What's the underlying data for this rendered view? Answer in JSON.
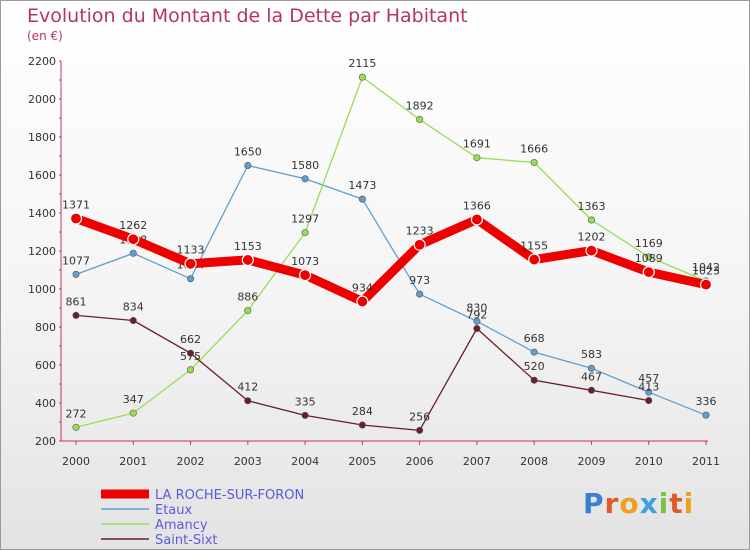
{
  "header": {
    "title": "Evolution du Montant de la Dette par Habitant",
    "subtitle": "(en €)"
  },
  "logo": {
    "text": "Proxiti"
  },
  "chart_data": {
    "type": "line",
    "title": "Evolution du Montant de la Dette par Habitant",
    "subtitle": "(en €)",
    "xlabel": "",
    "ylabel": "",
    "x": [
      "2000",
      "2001",
      "2002",
      "2003",
      "2004",
      "2005",
      "2006",
      "2007",
      "2008",
      "2009",
      "2010",
      "2011"
    ],
    "ylim": [
      200,
      2200
    ],
    "yticks": [
      200,
      400,
      600,
      800,
      1000,
      1200,
      1400,
      1600,
      1800,
      2000,
      2200
    ],
    "grid": false,
    "legend": "bottom-left",
    "series": [
      {
        "name": "LA ROCHE-SUR-FORON",
        "color": "#ee0000",
        "bold": true,
        "values": [
          1371,
          1262,
          1133,
          1153,
          1073,
          934,
          1233,
          1366,
          1155,
          1202,
          1089,
          1023
        ]
      },
      {
        "name": "Etaux",
        "color": "#5f9fd0",
        "bold": false,
        "values": [
          1077,
          1188,
          1054,
          1650,
          1580,
          1473,
          973,
          830,
          668,
          583,
          457,
          336
        ]
      },
      {
        "name": "Amancy",
        "color": "#99dd55",
        "bold": false,
        "values": [
          272,
          347,
          575,
          886,
          1297,
          2115,
          1892,
          1691,
          1666,
          1363,
          1169,
          1042
        ]
      },
      {
        "name": "Saint-Sixt",
        "color": "#6a1f28",
        "bold": false,
        "values": [
          861,
          834,
          662,
          412,
          335,
          284,
          256,
          792,
          520,
          467,
          413,
          null
        ]
      }
    ]
  }
}
